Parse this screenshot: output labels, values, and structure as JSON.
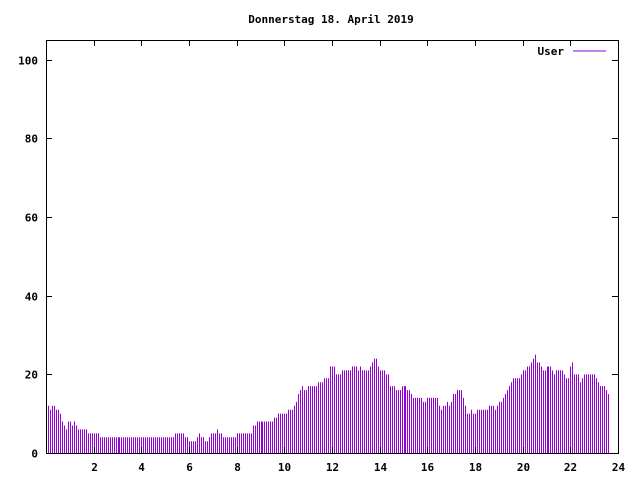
{
  "chart_data": {
    "type": "bar",
    "title": "Donnerstag 18. April 2019",
    "xlabel": "",
    "ylabel": "",
    "xlim": [
      0,
      24
    ],
    "ylim": [
      0,
      105
    ],
    "xticks": [
      2,
      4,
      6,
      8,
      10,
      12,
      14,
      16,
      18,
      20,
      22,
      24
    ],
    "yticks": [
      0,
      20,
      40,
      60,
      80,
      100
    ],
    "grid": false,
    "legend_position": "top-right",
    "series": [
      {
        "name": "User",
        "color": "#9400d3",
        "interval_minutes": 5,
        "values": [
          12,
          12,
          11,
          12,
          12,
          11,
          11,
          10,
          8,
          7,
          6,
          8,
          8,
          7,
          8,
          7,
          6,
          6,
          6,
          6,
          6,
          5,
          5,
          5,
          5,
          5,
          5,
          4,
          4,
          4,
          4,
          4,
          4,
          4,
          4,
          4,
          4,
          4,
          4,
          4,
          4,
          4,
          4,
          4,
          4,
          4,
          4,
          4,
          4,
          4,
          4,
          4,
          4,
          4,
          4,
          4,
          4,
          4,
          4,
          4,
          4,
          4,
          4,
          4,
          4,
          5,
          5,
          5,
          5,
          5,
          4,
          4,
          3,
          3,
          3,
          3,
          4,
          5,
          4,
          4,
          3,
          3,
          4,
          5,
          5,
          5,
          6,
          5,
          5,
          4,
          4,
          4,
          4,
          4,
          4,
          4,
          5,
          5,
          5,
          5,
          5,
          5,
          5,
          5,
          7,
          7,
          8,
          8,
          8,
          8,
          8,
          8,
          8,
          8,
          8,
          9,
          9,
          10,
          10,
          10,
          10,
          10,
          11,
          11,
          11,
          12,
          13,
          15,
          16,
          17,
          16,
          16,
          17,
          17,
          17,
          17,
          17,
          18,
          18,
          18,
          19,
          19,
          19,
          22,
          22,
          22,
          20,
          20,
          20,
          21,
          21,
          21,
          21,
          21,
          22,
          22,
          22,
          21,
          22,
          21,
          21,
          21,
          21,
          22,
          23,
          24,
          24,
          22,
          21,
          21,
          21,
          20,
          20,
          17,
          17,
          17,
          16,
          16,
          16,
          17,
          17,
          17,
          16,
          16,
          15,
          14,
          14,
          14,
          14,
          14,
          13,
          13,
          14,
          14,
          14,
          14,
          14,
          14,
          12,
          11,
          12,
          12,
          13,
          12,
          13,
          15,
          15,
          16,
          16,
          16,
          14,
          12,
          10,
          10,
          11,
          10,
          10,
          11,
          11,
          11,
          11,
          11,
          11,
          12,
          12,
          12,
          11,
          12,
          13,
          13,
          14,
          15,
          16,
          17,
          18,
          19,
          19,
          19,
          19,
          20,
          21,
          21,
          22,
          22,
          23,
          24,
          25,
          23,
          23,
          22,
          21,
          21,
          22,
          22,
          22,
          21,
          20,
          21,
          21,
          21,
          21,
          20,
          19,
          19,
          22,
          23,
          20,
          20,
          20,
          18,
          19,
          20,
          20,
          20,
          20,
          20,
          20,
          19,
          18,
          17,
          17,
          17,
          16,
          15
        ]
      }
    ]
  }
}
